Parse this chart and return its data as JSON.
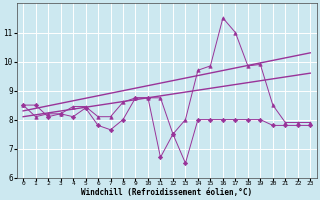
{
  "xlabel": "Windchill (Refroidissement éolien,°C)",
  "bg_color": "#cce8f0",
  "line_color": "#993399",
  "grid_color": "#ffffff",
  "ylim": [
    6,
    12
  ],
  "xlim": [
    -0.5,
    23.5
  ],
  "yticks": [
    6,
    7,
    8,
    9,
    10,
    11
  ],
  "xticks": [
    0,
    1,
    2,
    3,
    4,
    5,
    6,
    7,
    8,
    9,
    10,
    11,
    12,
    13,
    14,
    15,
    16,
    17,
    18,
    19,
    20,
    21,
    22,
    23
  ],
  "series1_x": [
    0,
    1,
    2,
    3,
    4,
    5,
    6,
    7,
    8,
    9,
    10,
    11,
    12,
    13,
    14,
    15,
    16,
    17,
    18,
    19,
    20,
    21,
    22,
    23
  ],
  "series1_y": [
    8.5,
    8.5,
    8.1,
    8.2,
    8.1,
    8.4,
    7.8,
    7.65,
    8.0,
    8.75,
    8.75,
    6.7,
    7.5,
    6.5,
    8.0,
    8.0,
    8.0,
    8.0,
    8.0,
    8.0,
    7.8,
    7.8,
    7.8,
    7.8
  ],
  "series2_x": [
    0,
    1,
    2,
    3,
    4,
    5,
    6,
    7,
    8,
    9,
    10,
    11,
    12,
    13,
    14,
    15,
    16,
    17,
    18,
    19,
    20,
    21,
    22,
    23
  ],
  "series2_y": [
    8.5,
    8.1,
    8.2,
    8.2,
    8.45,
    8.45,
    8.1,
    8.1,
    8.6,
    8.75,
    8.75,
    8.75,
    7.5,
    8.0,
    9.7,
    9.85,
    11.5,
    11.0,
    9.85,
    9.9,
    8.5,
    7.9,
    7.9,
    7.9
  ],
  "trend1_x": [
    0,
    23
  ],
  "trend1_y": [
    8.3,
    10.3
  ],
  "trend2_x": [
    0,
    23
  ],
  "trend2_y": [
    8.1,
    9.6
  ]
}
